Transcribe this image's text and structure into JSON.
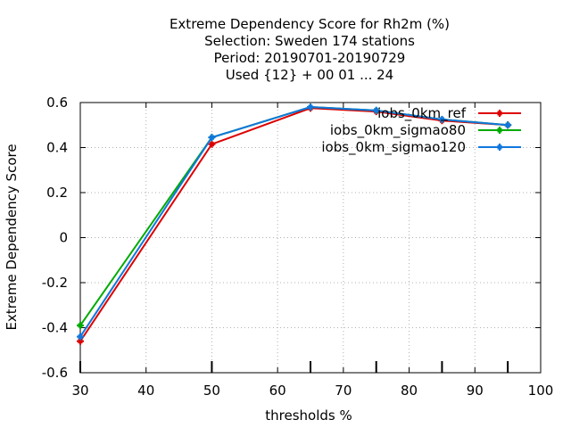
{
  "chart_data": {
    "type": "line",
    "title_lines": [
      "Extreme Dependency Score  for Rh2m (%)",
      "Selection: Sweden    174 stations",
      "Period: 20190701-20190729",
      "Used {12} + 00 01 ... 24"
    ],
    "xlabel": "thresholds %",
    "ylabel": "Extreme Dependency Score",
    "xlim": [
      30,
      100
    ],
    "ylim": [
      -0.6,
      0.6
    ],
    "xticks": [
      "30",
      "40",
      "50",
      "60",
      "70",
      "80",
      "90",
      "100"
    ],
    "yticks": [
      "-0.6",
      "-0.4",
      "-0.2",
      "0",
      "0.2",
      "0.4",
      "0.6"
    ],
    "x_tick_values": [
      30,
      40,
      50,
      60,
      70,
      80,
      90,
      100
    ],
    "y_tick_values": [
      -0.6,
      -0.4,
      -0.2,
      0,
      0.2,
      0.4,
      0.6
    ],
    "grid": true,
    "legend_position": "top-right",
    "x": [
      30,
      50,
      65,
      75,
      85,
      95
    ],
    "series": [
      {
        "name": "iobs_0km_ref",
        "color": "#dd0000",
        "values": [
          -0.46,
          0.415,
          0.575,
          0.56,
          0.52,
          0.5
        ]
      },
      {
        "name": "iobs_0km_sigmao80",
        "color": "#00aa00",
        "values": [
          -0.39,
          0.445,
          0.58,
          0.565,
          0.525,
          0.5
        ]
      },
      {
        "name": "iobs_0km_sigmao120",
        "color": "#1177dd",
        "values": [
          -0.44,
          0.445,
          0.58,
          0.565,
          0.525,
          0.5
        ]
      }
    ]
  }
}
